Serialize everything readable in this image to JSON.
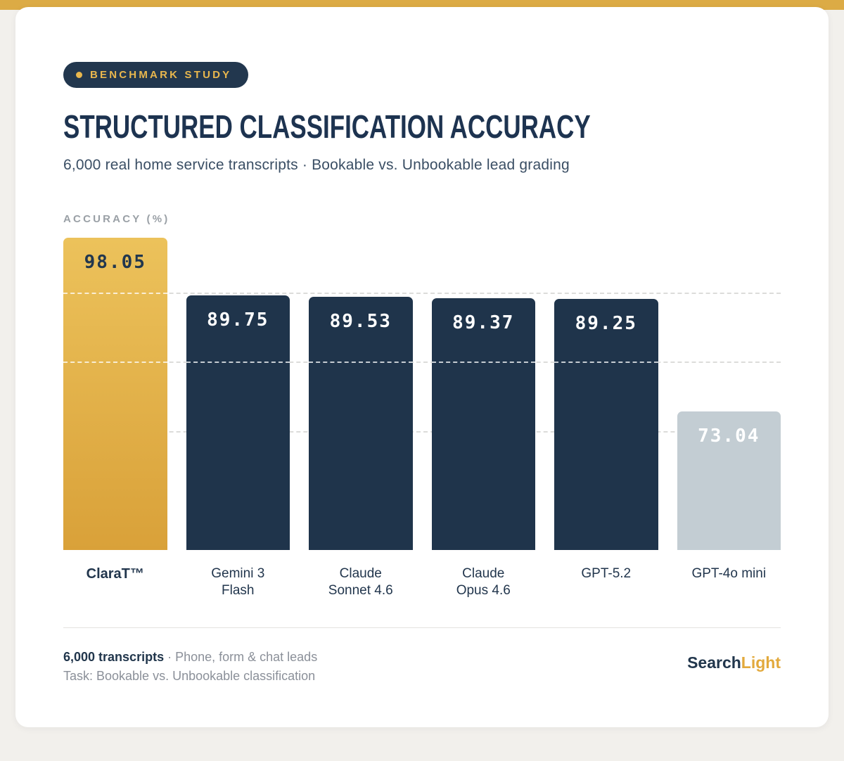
{
  "badge": {
    "label": "BENCHMARK STUDY"
  },
  "title": "STRUCTURED CLASSIFICATION ACCURACY",
  "subtitle": "6,000 real home service transcripts · Bookable vs. Unbookable lead grading",
  "chart_data": {
    "type": "bar",
    "title": "STRUCTURED CLASSIFICATION ACCURACY",
    "ylabel": "ACCURACY (%)",
    "categories": [
      "ClaraT™",
      "Gemini 3 Flash",
      "Claude Sonnet 4.6",
      "Claude Opus 4.6",
      "GPT-5.2",
      "GPT-4o mini"
    ],
    "values": [
      98.05,
      89.75,
      89.53,
      89.37,
      89.25,
      73.04
    ],
    "value_labels": [
      "98.05",
      "89.75",
      "89.53",
      "89.37",
      "89.25",
      "73.04"
    ],
    "bar_colors": [
      "gold",
      "navy",
      "navy",
      "navy",
      "navy",
      "gray"
    ],
    "ylim": [
      53,
      98.5
    ],
    "gridlines": [
      90,
      80,
      70
    ],
    "overlay_gridlines": [
      90,
      80
    ],
    "grid": "dashed",
    "legend": "none",
    "highlight_index": 0
  },
  "colors": {
    "gold": "#d9a139",
    "gold_light": "#ecc25b",
    "navy": "#1f344b",
    "gray_bar": "#c3cdd3",
    "value_on_gold": "#22374e",
    "value_on_dark": "#ffffff"
  },
  "footer": {
    "line1_bold": "6,000 transcripts",
    "line1_rest": " · Phone, form & chat leads",
    "line2": "Task: Bookable vs. Unbookable classification",
    "brand_primary": "Search",
    "brand_accent": "Light"
  }
}
